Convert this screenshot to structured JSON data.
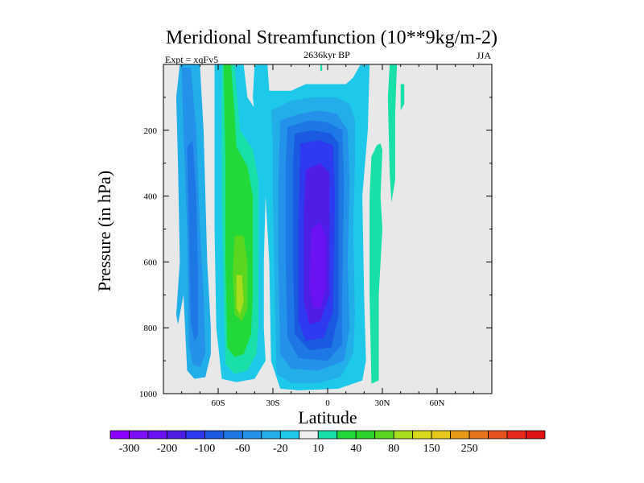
{
  "chart_data": {
    "type": "heatmap",
    "title": "Meridional Streamfunction (10**9kg/m-2)",
    "subtitle_left": "Expt = xqFv5",
    "subtitle_center": "2636kyr BP",
    "subtitle_right": "JJA",
    "xlabel": "Latitude",
    "ylabel": "Pressure (in hPa)",
    "xlim": [
      -90,
      90
    ],
    "ylim": [
      0,
      1000
    ],
    "y_inverted": true,
    "x_ticks": [
      {
        "value": -60,
        "label": "60S"
      },
      {
        "value": -30,
        "label": "30S"
      },
      {
        "value": 0,
        "label": "0"
      },
      {
        "value": 30,
        "label": "30N"
      },
      {
        "value": 60,
        "label": "60N"
      }
    ],
    "y_ticks": [
      {
        "value": 200,
        "label": "200"
      },
      {
        "value": 400,
        "label": "400"
      },
      {
        "value": 600,
        "label": "600"
      },
      {
        "value": 800,
        "label": "800"
      },
      {
        "value": 1000,
        "label": "1000"
      }
    ],
    "background_color": "#e8e8e8",
    "colorbar": {
      "colors": [
        "#8c00ff",
        "#7f0ef8",
        "#6a12f2",
        "#4f1ee6",
        "#2e3af0",
        "#1a5ae0",
        "#1d78e6",
        "#2392e8",
        "#22aee8",
        "#1ec8e8",
        "#f0f0f0",
        "#19e0a8",
        "#23d93a",
        "#2ad32a",
        "#5ad61e",
        "#aadc1e",
        "#d8d81c",
        "#e6c81a",
        "#e69a16",
        "#e6741a",
        "#e6521c",
        "#e62a1c",
        "#e01414"
      ],
      "tick_labels": [
        {
          "after_index": 0,
          "label": "-300"
        },
        {
          "after_index": 2,
          "label": "-200"
        },
        {
          "after_index": 4,
          "label": "-100"
        },
        {
          "after_index": 6,
          "label": "-60"
        },
        {
          "after_index": 8,
          "label": "-20"
        },
        {
          "after_index": 10,
          "label": "10"
        },
        {
          "after_index": 12,
          "label": "40"
        },
        {
          "after_index": 14,
          "label": "80"
        },
        {
          "after_index": 16,
          "label": "150"
        },
        {
          "after_index": 18,
          "label": "250"
        }
      ]
    },
    "contour_regions": [
      {
        "name": "north-edge-cells",
        "color": "#19e0a8",
        "polygons": [
          [
            [
              27,
              245
            ],
            [
              29,
              240
            ],
            [
              30,
              260
            ],
            [
              29,
              400
            ],
            [
              30,
              500
            ],
            [
              28,
              700
            ],
            [
              28,
              960
            ],
            [
              24,
              970
            ],
            [
              23,
              700
            ],
            [
              23,
              400
            ],
            [
              24,
              280
            ]
          ],
          [
            [
              34,
              0
            ],
            [
              38,
              0
            ],
            [
              37,
              150
            ],
            [
              37,
              350
            ],
            [
              35,
              420
            ],
            [
              34,
              330
            ],
            [
              33,
              100
            ]
          ],
          [
            [
              40,
              60
            ],
            [
              42,
              60
            ],
            [
              42,
              120
            ],
            [
              40,
              140
            ]
          ],
          [
            [
              -4,
              0
            ],
            [
              -3,
              0
            ],
            [
              -3,
              20
            ],
            [
              -4,
              20
            ]
          ]
        ]
      },
      {
        "name": "tropical-cell-outer",
        "color": "#1ec8e8",
        "polygons": [
          [
            [
              -40,
              0
            ],
            [
              -33,
              0
            ],
            [
              -32,
              80
            ],
            [
              -20,
              80
            ],
            [
              -12,
              60
            ],
            [
              -5,
              60
            ],
            [
              10,
              60
            ],
            [
              14,
              40
            ],
            [
              18,
              0
            ],
            [
              23,
              0
            ],
            [
              22,
              200
            ],
            [
              19,
              400
            ],
            [
              20,
              700
            ],
            [
              21,
              900
            ],
            [
              19,
              960
            ],
            [
              6,
              985
            ],
            [
              -16,
              990
            ],
            [
              -26,
              985
            ],
            [
              -31,
              900
            ],
            [
              -32,
              600
            ],
            [
              -35,
              300
            ],
            [
              -39,
              200
            ],
            [
              -41,
              100
            ]
          ]
        ]
      },
      {
        "name": "tropical-cell-l2",
        "color": "#22aee8",
        "polygons": [
          [
            [
              -31,
              140
            ],
            [
              -20,
              110
            ],
            [
              -8,
              100
            ],
            [
              5,
              100
            ],
            [
              12,
              120
            ],
            [
              15,
              170
            ],
            [
              15,
              300
            ],
            [
              14,
              500
            ],
            [
              15,
              760
            ],
            [
              14,
              880
            ],
            [
              7,
              950
            ],
            [
              -5,
              968
            ],
            [
              -20,
              968
            ],
            [
              -28,
              940
            ],
            [
              -29,
              700
            ],
            [
              -30,
              400
            ],
            [
              -30,
              240
            ]
          ]
        ]
      },
      {
        "name": "tropical-cell-l3",
        "color": "#2392e8",
        "polygons": [
          [
            [
              -26,
              170
            ],
            [
              -15,
              150
            ],
            [
              -5,
              140
            ],
            [
              5,
              150
            ],
            [
              11,
              200
            ],
            [
              12,
              350
            ],
            [
              11,
              600
            ],
            [
              12,
              800
            ],
            [
              9,
              900
            ],
            [
              -5,
              930
            ],
            [
              -20,
              925
            ],
            [
              -26,
              880
            ],
            [
              -27,
              600
            ],
            [
              -27,
              350
            ]
          ]
        ]
      },
      {
        "name": "tropical-cell-l4",
        "color": "#1d78e6",
        "polygons": [
          [
            [
              -22,
              190
            ],
            [
              -10,
              170
            ],
            [
              0,
              175
            ],
            [
              8,
              200
            ],
            [
              9,
              350
            ],
            [
              8,
              700
            ],
            [
              8,
              850
            ],
            [
              0,
              900
            ],
            [
              -16,
              892
            ],
            [
              -22,
              830
            ],
            [
              -23,
              600
            ],
            [
              -23,
              300
            ]
          ]
        ]
      },
      {
        "name": "tropical-cell-l5",
        "color": "#1a5ae0",
        "polygons": [
          [
            [
              -18,
              210
            ],
            [
              -8,
              200
            ],
            [
              2,
              210
            ],
            [
              6,
              240
            ],
            [
              6,
              500
            ],
            [
              6,
              760
            ],
            [
              2,
              860
            ],
            [
              -10,
              868
            ],
            [
              -18,
              820
            ],
            [
              -19,
              600
            ],
            [
              -19,
              300
            ]
          ]
        ]
      },
      {
        "name": "tropical-cell-l6",
        "color": "#2e3af0",
        "polygons": [
          [
            [
              -15,
              240
            ],
            [
              -5,
              230
            ],
            [
              3,
              245
            ],
            [
              4,
              400
            ],
            [
              3,
              750
            ],
            [
              -2,
              830
            ],
            [
              -12,
              840
            ],
            [
              -16,
              780
            ],
            [
              -16,
              500
            ]
          ]
        ]
      },
      {
        "name": "tropical-cell-l7",
        "color": "#4f1ee6",
        "polygons": [
          [
            [
              -12,
              320
            ],
            [
              -4,
              300
            ],
            [
              1,
              330
            ],
            [
              1,
              700
            ],
            [
              -4,
              780
            ],
            [
              -10,
              790
            ],
            [
              -13,
              720
            ],
            [
              -13,
              450
            ]
          ]
        ]
      },
      {
        "name": "tropical-cell-core",
        "color": "#6a12f2",
        "polygons": [
          [
            [
              -9,
              500
            ],
            [
              -4,
              480
            ],
            [
              -1,
              520
            ],
            [
              -1,
              680
            ],
            [
              -4,
              740
            ],
            [
              -8,
              740
            ],
            [
              -10,
              680
            ]
          ]
        ]
      },
      {
        "name": "southern-cell-outer",
        "color": "#22aee8",
        "polygons": [
          [
            [
              -81,
              0
            ],
            [
              -70,
              0
            ],
            [
              -68,
              200
            ],
            [
              -66,
              600
            ],
            [
              -64,
              800
            ],
            [
              -64,
              880
            ],
            [
              -67,
              950
            ],
            [
              -73,
              955
            ],
            [
              -77,
              930
            ],
            [
              -79,
              700
            ],
            [
              -82,
              790
            ],
            [
              -83,
              760
            ],
            [
              -81,
              600
            ],
            [
              -82,
              300
            ],
            [
              -83,
              100
            ]
          ]
        ]
      },
      {
        "name": "southern-cell-l2",
        "color": "#2392e8",
        "polygons": [
          [
            [
              -80,
              10
            ],
            [
              -75,
              10
            ],
            [
              -72,
              200
            ],
            [
              -70,
              500
            ],
            [
              -68,
              700
            ],
            [
              -67,
              880
            ],
            [
              -70,
              920
            ],
            [
              -74,
              910
            ],
            [
              -76,
              850
            ],
            [
              -77,
              500
            ],
            [
              -79,
              200
            ]
          ]
        ]
      },
      {
        "name": "southern-cell-l3",
        "color": "#1d78e6",
        "polygons": [
          [
            [
              -77,
              250
            ],
            [
              -74,
              230
            ],
            [
              -72,
              400
            ],
            [
              -71,
              650
            ],
            [
              -71,
              820
            ],
            [
              -73,
              840
            ],
            [
              -75,
              780
            ],
            [
              -76,
              500
            ]
          ]
        ]
      },
      {
        "name": "mid-cell-outer",
        "color": "#1ec8e8",
        "polygons": [
          [
            [
              -62,
              0
            ],
            [
              -46,
              0
            ],
            [
              -44,
              100
            ],
            [
              -38,
              150
            ],
            [
              -34,
              200
            ],
            [
              -34,
              400
            ],
            [
              -35,
              600
            ],
            [
              -35,
              800
            ],
            [
              -34,
              900
            ],
            [
              -40,
              955
            ],
            [
              -50,
              965
            ],
            [
              -58,
              955
            ],
            [
              -61,
              800
            ],
            [
              -62,
              500
            ],
            [
              -62,
              200
            ]
          ]
        ]
      },
      {
        "name": "mid-cell-l2",
        "color": "#19e0a8",
        "polygons": [
          [
            [
              -58,
              0
            ],
            [
              -51,
              0
            ],
            [
              -48,
              200
            ],
            [
              -41,
              260
            ],
            [
              -38,
              350
            ],
            [
              -38,
              600
            ],
            [
              -38,
              800
            ],
            [
              -39,
              880
            ],
            [
              -44,
              930
            ],
            [
              -51,
              940
            ],
            [
              -56,
              910
            ],
            [
              -57,
              700
            ],
            [
              -58,
              400
            ]
          ]
        ]
      },
      {
        "name": "mid-cell-l3",
        "color": "#23d93a",
        "polygons": [
          [
            [
              -57,
              0
            ],
            [
              -53,
              0
            ],
            [
              -51,
              150
            ],
            [
              -50,
              250
            ],
            [
              -44,
              310
            ],
            [
              -41,
              400
            ],
            [
              -41,
              700
            ],
            [
              -42,
              820
            ],
            [
              -46,
              880
            ],
            [
              -51,
              888
            ],
            [
              -55,
              860
            ],
            [
              -56,
              600
            ],
            [
              -56,
              300
            ]
          ]
        ]
      },
      {
        "name": "mid-cell-l4",
        "color": "#5ad61e",
        "polygons": [
          [
            [
              -51,
              520
            ],
            [
              -46,
              520
            ],
            [
              -44,
              600
            ],
            [
              -44,
              740
            ],
            [
              -47,
              780
            ],
            [
              -51,
              760
            ],
            [
              -52,
              640
            ]
          ]
        ]
      },
      {
        "name": "mid-cell-core",
        "color": "#aadc1e",
        "polygons": [
          [
            [
              -50,
              640
            ],
            [
              -47,
              640
            ],
            [
              -46,
              720
            ],
            [
              -48,
              760
            ],
            [
              -50,
              740
            ]
          ]
        ]
      }
    ]
  }
}
